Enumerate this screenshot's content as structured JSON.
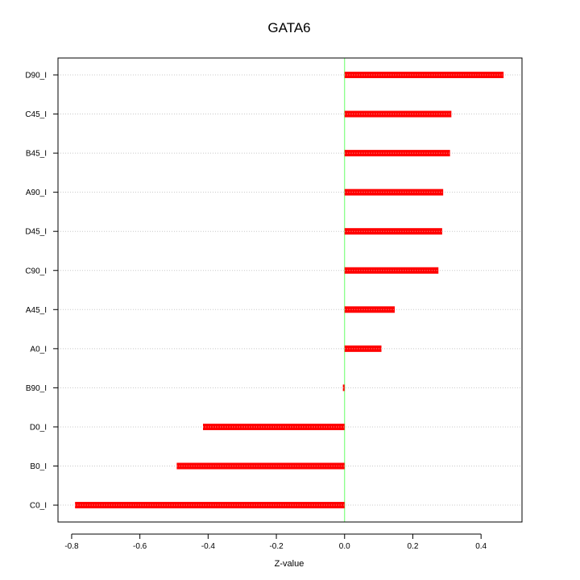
{
  "chart_data": {
    "type": "bar",
    "orientation": "horizontal",
    "title": "GATA6",
    "xlabel": "Z-value",
    "ylabel": "",
    "categories": [
      "D90_I",
      "C45_I",
      "B45_I",
      "A90_I",
      "D45_I",
      "C90_I",
      "A45_I",
      "A0_I",
      "B90_I",
      "D0_I",
      "B0_I",
      "C0_I"
    ],
    "values": [
      0.466,
      0.313,
      0.309,
      0.289,
      0.286,
      0.275,
      0.147,
      0.108,
      -0.005,
      -0.415,
      -0.492,
      -0.79
    ],
    "xlim": [
      -0.84,
      0.52
    ],
    "xticks": [
      -0.8,
      -0.6,
      -0.4,
      -0.2,
      0.0,
      0.2,
      0.4
    ],
    "xtick_labels": [
      "-0.8",
      "-0.6",
      "-0.4",
      "-0.2",
      "0.0",
      "0.2",
      "0.4"
    ],
    "grid": "horizontal dotted",
    "colors": {
      "bar": "#ff0000",
      "bar_center": "#ff9a9a",
      "zero_line": "#66ff66",
      "grid": "#c8c8c8",
      "axis": "#000000"
    }
  }
}
